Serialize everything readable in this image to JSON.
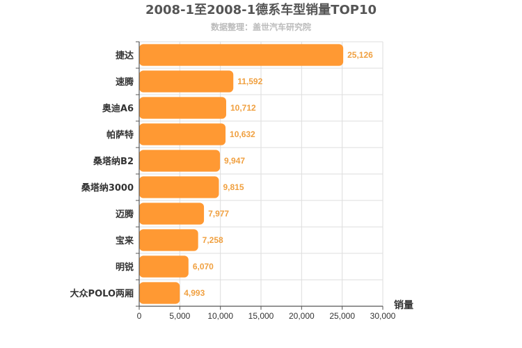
{
  "chart_data": {
    "type": "bar",
    "orientation": "horizontal",
    "title": "2008-1至2008-1德系车型销量TOP10",
    "subtitle": "数据整理：盖世汽车研究院",
    "categories": [
      "捷达",
      "速腾",
      "奥迪A6",
      "帕萨特",
      "桑塔纳B2",
      "桑塔纳3000",
      "迈腾",
      "宝来",
      "明锐",
      "大众POLO两厢"
    ],
    "values": [
      25126,
      11592,
      10712,
      10632,
      9947,
      9815,
      7977,
      7258,
      6070,
      4993
    ],
    "value_labels": [
      "25,126",
      "11,592",
      "10,712",
      "10,632",
      "9,947",
      "9,815",
      "7,977",
      "7,258",
      "6,070",
      "4,993"
    ],
    "xlabel": "销量",
    "ylabel": "",
    "xlim": [
      0,
      30000
    ],
    "xticks": [
      0,
      5000,
      10000,
      15000,
      20000,
      25000,
      30000
    ],
    "xtick_labels": [
      "0",
      "5,000",
      "10,000",
      "15,000",
      "20,000",
      "25,000",
      "30,000"
    ],
    "grid": true,
    "bar_color": "#ff9933",
    "label_color": "#f0a040"
  }
}
